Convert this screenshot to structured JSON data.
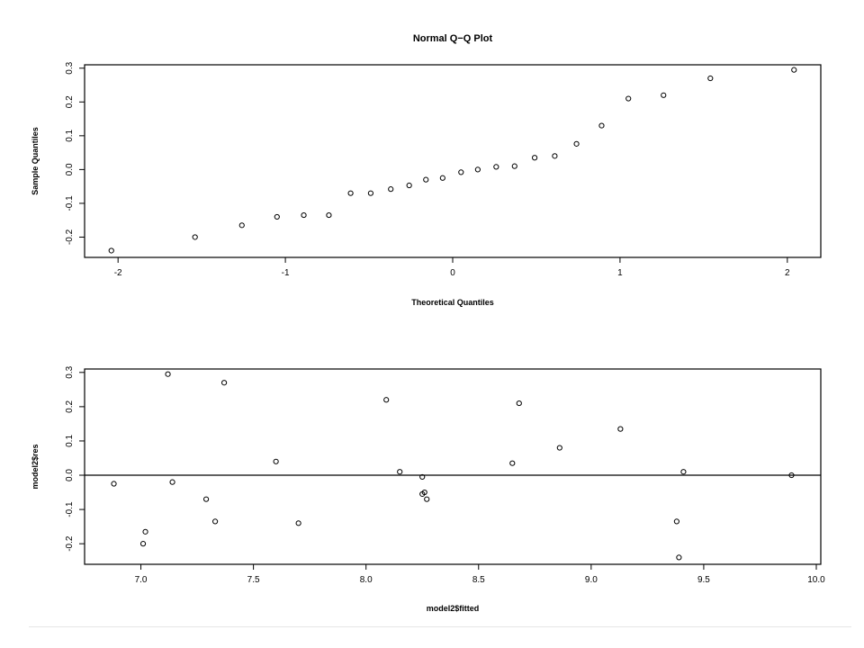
{
  "chart_data": [
    {
      "type": "scatter",
      "title": "Normal Q−Q Plot",
      "xlabel": "Theoretical Quantiles",
      "ylabel": "Sample Quantiles",
      "xlim": [
        -2.2,
        2.2
      ],
      "ylim": [
        -0.26,
        0.31
      ],
      "xticks": [
        -2,
        -1,
        0,
        1,
        2
      ],
      "xtick_labels": [
        "-2",
        "-1",
        "0",
        "1",
        "2"
      ],
      "yticks": [
        -0.2,
        -0.1,
        0.0,
        0.1,
        0.2,
        0.3
      ],
      "ytick_labels": [
        "-0.2",
        "-0.1",
        "0.0",
        "0.1",
        "0.2",
        "0.3"
      ],
      "grid": false,
      "x": [
        -2.04,
        -1.54,
        -1.26,
        -1.05,
        -0.89,
        -0.74,
        -0.61,
        -0.49,
        -0.37,
        -0.26,
        -0.16,
        -0.06,
        0.05,
        0.15,
        0.26,
        0.37,
        0.49,
        0.61,
        0.74,
        0.89,
        1.05,
        1.26,
        1.54,
        2.04
      ],
      "y": [
        -0.24,
        -0.2,
        -0.165,
        -0.14,
        -0.135,
        -0.135,
        -0.07,
        -0.07,
        -0.058,
        -0.047,
        -0.03,
        -0.025,
        -0.008,
        0.0,
        0.008,
        0.01,
        0.035,
        0.04,
        0.076,
        0.13,
        0.21,
        0.22,
        0.27,
        0.295
      ]
    },
    {
      "type": "scatter",
      "title": "",
      "xlabel": "model2$fitted",
      "ylabel": "model2$res",
      "xlim": [
        6.75,
        10.02
      ],
      "ylim": [
        -0.26,
        0.31
      ],
      "xticks": [
        7.0,
        7.5,
        8.0,
        8.5,
        9.0,
        9.5,
        10.0
      ],
      "xtick_labels": [
        "7.0",
        "7.5",
        "8.0",
        "8.5",
        "9.0",
        "9.5",
        "10.0"
      ],
      "yticks": [
        -0.2,
        -0.1,
        0.0,
        0.1,
        0.2,
        0.3
      ],
      "ytick_labels": [
        "-0.2",
        "-0.1",
        "0.0",
        "0.1",
        "0.2",
        "0.3"
      ],
      "grid": false,
      "reference_line_y": 0.0,
      "x": [
        6.88,
        7.01,
        7.02,
        7.12,
        7.14,
        7.29,
        7.33,
        7.37,
        7.6,
        7.7,
        8.09,
        8.15,
        8.25,
        8.25,
        8.26,
        8.27,
        8.65,
        8.68,
        8.86,
        9.13,
        9.38,
        9.39,
        9.41,
        9.89
      ],
      "y": [
        -0.025,
        -0.2,
        -0.165,
        0.295,
        -0.02,
        -0.07,
        -0.135,
        0.27,
        0.04,
        -0.14,
        0.22,
        0.01,
        -0.005,
        -0.055,
        -0.05,
        -0.07,
        0.035,
        0.21,
        0.08,
        0.135,
        -0.135,
        -0.24,
        0.01,
        0.0
      ]
    }
  ]
}
